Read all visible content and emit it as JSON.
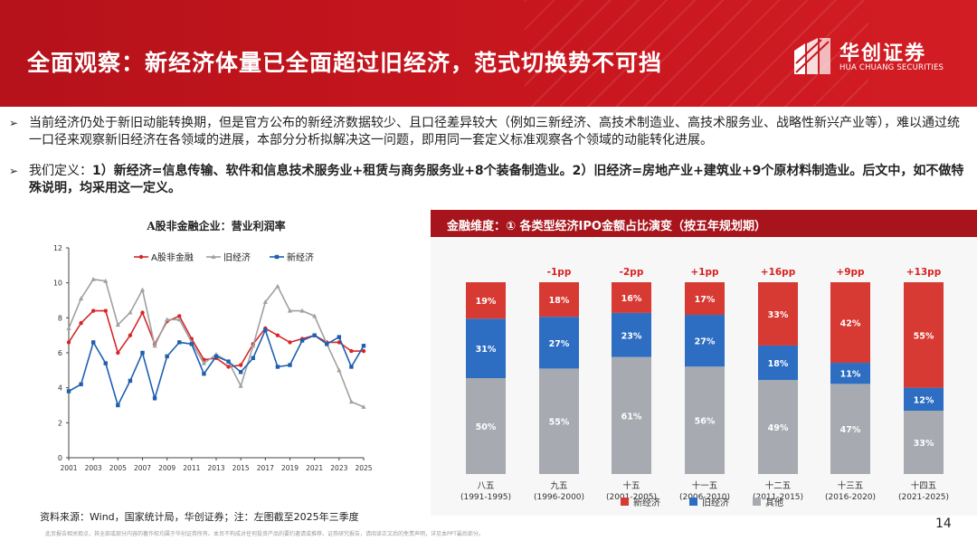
{
  "header": {
    "title": "全面观察：新经济体量已全面超过旧经济，范式切换势不可挡",
    "logo_cn": "华创证券",
    "logo_en": "HUA CHUANG SECURITIES",
    "color": "#c8161e"
  },
  "bullets": [
    {
      "text": "当前经济仍处于新旧动能转换期，但是官方公布的新经济数据较少、且口径差异较大（例如三新经济、高技术制造业、高技术服务业、战略性新兴产业等），难以通过统一口径来观察新旧经济在各领域的进展，本部分分析拟解决这一问题，即用同一套定义标准观察各个领域的动能转化进展。"
    },
    {
      "prefix": "我们定义：",
      "text": "1）新经济=信息传输、软件和信息技术服务业+租赁与商务服务业+8个装备制造业。2）旧经济=房地产业+建筑业+9个原材料制造业。后文中，如不做特殊说明，均采用这一定义。"
    }
  ],
  "chart_data": [
    {
      "type": "line",
      "title": "A股非金融企业：营业利润率",
      "x": [
        2001,
        2002,
        2003,
        2004,
        2005,
        2006,
        2007,
        2008,
        2009,
        2010,
        2011,
        2012,
        2013,
        2014,
        2015,
        2016,
        2017,
        2018,
        2019,
        2020,
        2021,
        2022,
        2023,
        2024,
        2025
      ],
      "xticks": [
        "2001",
        "2003",
        "2005",
        "2007",
        "2009",
        "2011",
        "2013",
        "2015",
        "2017",
        "2019",
        "2021",
        "2023",
        "2025"
      ],
      "ylim": [
        0,
        12
      ],
      "yticks": [
        "0",
        "2",
        "4",
        "6",
        "8",
        "10",
        "12"
      ],
      "series": [
        {
          "name": "A股非金融",
          "color": "#d62728",
          "marker": "dot",
          "values": [
            6.6,
            7.7,
            8.4,
            8.4,
            6.0,
            7.0,
            8.3,
            6.5,
            7.8,
            8.1,
            6.8,
            5.6,
            5.7,
            5.2,
            5.3,
            6.5,
            7.4,
            7.0,
            6.6,
            6.8,
            7.0,
            6.6,
            6.6,
            6.1,
            6.1
          ]
        },
        {
          "name": "旧经济",
          "color": "#a0a0a0",
          "marker": "triangle",
          "values": [
            7.4,
            9.1,
            10.2,
            10.1,
            7.6,
            8.3,
            9.6,
            6.4,
            7.9,
            7.9,
            6.6,
            5.4,
            5.9,
            5.5,
            4.1,
            6.4,
            8.9,
            9.8,
            8.4,
            8.4,
            8.1,
            6.5,
            5.0,
            3.2,
            2.9
          ]
        },
        {
          "name": "新经济",
          "color": "#1f5fb0",
          "marker": "square",
          "values": [
            3.8,
            4.2,
            6.6,
            5.4,
            3.0,
            4.4,
            6.0,
            3.4,
            5.8,
            6.6,
            6.5,
            4.8,
            5.8,
            5.5,
            4.9,
            5.7,
            7.3,
            5.2,
            5.3,
            6.7,
            7.0,
            6.5,
            6.9,
            5.2,
            6.4
          ]
        }
      ],
      "legend": "top"
    },
    {
      "type": "bar",
      "stacked": true,
      "title": "金融维度：① 各类型经济IPO金额占比演变（按五年规划期）",
      "categories": [
        "八五",
        "九五",
        "十五",
        "十一五",
        "十二五",
        "十三五",
        "十四五"
      ],
      "category_years": [
        "(1991-1995)",
        "(1996-2000)",
        "(2001-2005)",
        "(2006-2010)",
        "(2011-2015)",
        "(2016-2020)",
        "(2021-2025)"
      ],
      "changes": [
        "",
        "-1pp",
        "-2pp",
        "+1pp",
        "+16pp",
        "+9pp",
        "+13pp"
      ],
      "series": [
        {
          "name": "其他",
          "color": "#a7aab0",
          "values": [
            50,
            55,
            61,
            56,
            49,
            47,
            33
          ]
        },
        {
          "name": "旧经济",
          "color": "#2d6ec2",
          "values": [
            31,
            27,
            23,
            27,
            18,
            11,
            12
          ]
        },
        {
          "name": "新经济",
          "color": "#d73a33",
          "values": [
            19,
            18,
            16,
            17,
            33,
            42,
            55
          ]
        }
      ],
      "legend_order": [
        "新经济",
        "旧经济",
        "其他"
      ],
      "legend": "bottom"
    }
  ],
  "footer": {
    "source": "资料来源：Wind，国家统计局，华创证券；注：左图截至2025年三季度",
    "disclaimer": "此页报告相关观点，其全部或部分内容的著作权均属于华创证券所有。本页不构成对任何投资产品的要约邀请或推荐。证券研究报告，请阅读正文后的免责声明，详见本PPT最后部分。",
    "page": "14"
  }
}
